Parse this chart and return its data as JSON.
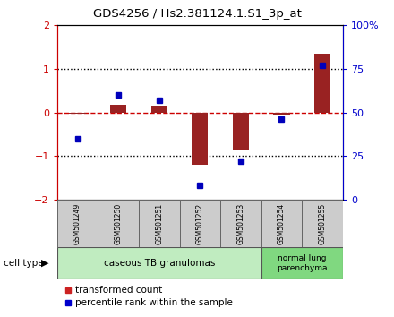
{
  "title": "GDS4256 / Hs2.381124.1.S1_3p_at",
  "samples": [
    "GSM501249",
    "GSM501250",
    "GSM501251",
    "GSM501252",
    "GSM501253",
    "GSM501254",
    "GSM501255"
  ],
  "transformed_count": [
    -0.03,
    0.18,
    0.15,
    -1.2,
    -0.85,
    -0.05,
    1.35
  ],
  "percentile_rank": [
    35,
    60,
    57,
    8,
    22,
    46,
    77
  ],
  "ylim_left": [
    -2,
    2
  ],
  "ylim_right": [
    0,
    100
  ],
  "group1_indices": [
    0,
    1,
    2,
    3,
    4
  ],
  "group2_indices": [
    5,
    6
  ],
  "group1_label": "caseous TB granulomas",
  "group2_label": "normal lung\nparenchyma",
  "group1_color": "#c0ecc0",
  "group2_color": "#80d880",
  "bar_color": "#992222",
  "dot_color": "#0000bb",
  "bar_width": 0.4,
  "dotted_line_color": "#000000",
  "zero_line_color": "#cc0000",
  "sample_box_color": "#cccccc",
  "right_axis_color": "#0000cc",
  "left_axis_color": "#cc0000",
  "legend_bar_color": "#cc2222",
  "legend_dot_color": "#0000cc"
}
